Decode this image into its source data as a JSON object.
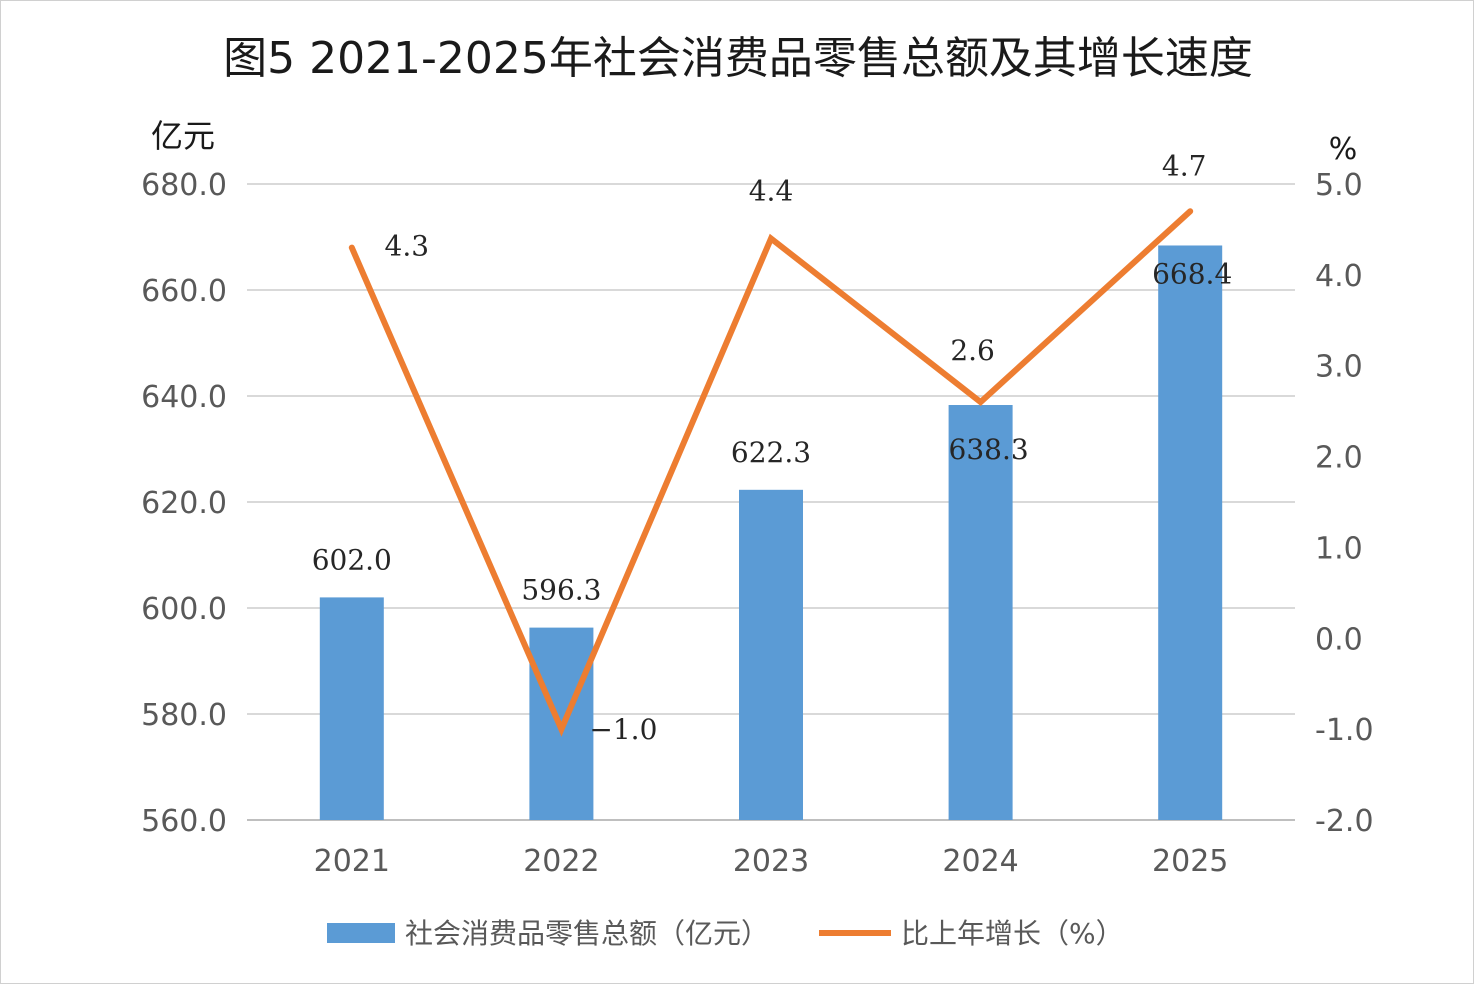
{
  "chart_data": {
    "type": "bar",
    "title": "图5  2021-2025年社会消费品零售总额及其增长速度",
    "categories": [
      "2021",
      "2022",
      "2023",
      "2024",
      "2025"
    ],
    "y_left_label": "亿元",
    "y_right_label": "%",
    "y_left_range": [
      560,
      680
    ],
    "y_left_ticks": [
      560,
      580,
      600,
      620,
      640,
      660,
      680
    ],
    "y_left_tick_labels": [
      "560.0",
      "580.0",
      "600.0",
      "620.0",
      "640.0",
      "660.0",
      "680.0"
    ],
    "y_right_range": [
      -2,
      5
    ],
    "y_right_ticks": [
      -2,
      -1,
      0,
      1,
      2,
      3,
      4,
      5
    ],
    "y_right_tick_labels": [
      "-2.0",
      "-1.0",
      "0.0",
      "1.0",
      "2.0",
      "3.0",
      "4.0",
      "5.0"
    ],
    "grid": true,
    "legend_position": "bottom",
    "series": [
      {
        "name": "社会消费品零售总额（亿元）",
        "type": "bar",
        "axis": "left",
        "color": "#5b9bd5",
        "values": [
          602.0,
          596.3,
          622.3,
          638.3,
          668.4
        ],
        "labels": [
          "602.0",
          "596.3",
          "622.3",
          "638.3",
          "668.4"
        ]
      },
      {
        "name": "比上年增长（%）",
        "type": "line",
        "axis": "right",
        "color": "#ed7d31",
        "values": [
          4.3,
          -1.0,
          4.4,
          2.6,
          4.7
        ],
        "labels": [
          "4.3",
          "−1.0",
          "4.4",
          "2.6",
          "4.7"
        ]
      }
    ]
  }
}
